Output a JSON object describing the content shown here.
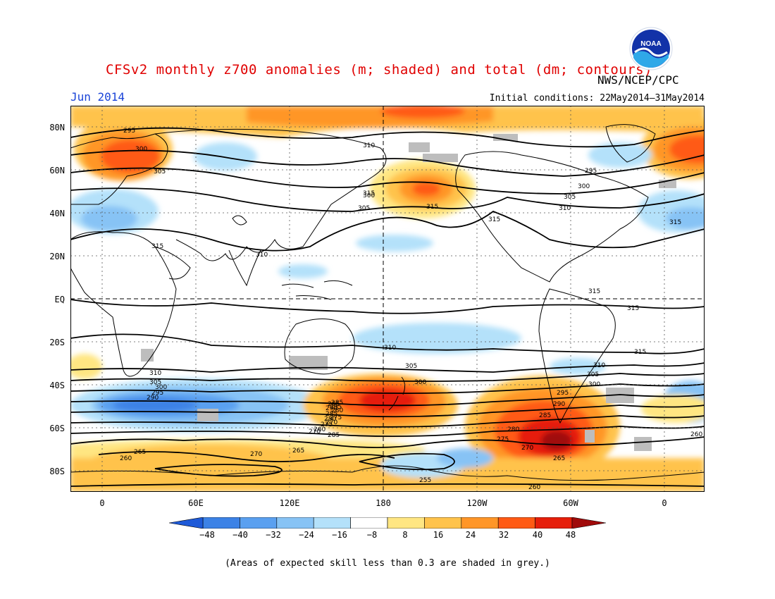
{
  "header": {
    "title": "CFSv2 monthly z700 anomalies (m; shaded) and total (dm; contours)",
    "agency": "NWS/NCEP/CPC",
    "month": "Jun 2014",
    "initial_conditions": "Initial conditions: 22May2014–31May2014",
    "logo_text": "NOAA"
  },
  "axes": {
    "y_labels": [
      "80N",
      "60N",
      "40N",
      "20N",
      "EQ",
      "20S",
      "40S",
      "60S",
      "80S"
    ],
    "x_labels": [
      "0",
      "60E",
      "120E",
      "180",
      "120W",
      "60W",
      "0"
    ]
  },
  "colorbar": {
    "ticks": [
      "−48",
      "−40",
      "−32",
      "−24",
      "−16",
      "−8",
      "8",
      "16",
      "24",
      "32",
      "40",
      "48"
    ],
    "colors": [
      "#1e5ad8",
      "#3c82e6",
      "#5aa0f0",
      "#87c3f5",
      "#b4e1fa",
      "#ffffff",
      "#ffe682",
      "#ffc34b",
      "#ff9628",
      "#ff5a14",
      "#e61e0a",
      "#a00a0a"
    ]
  },
  "contour_labels": [
    "295",
    "300",
    "305",
    "310",
    "315",
    "295",
    "300",
    "305",
    "315",
    "310",
    "315",
    "315",
    "310",
    "305",
    "300",
    "315",
    "310",
    "305",
    "300",
    "295",
    "290",
    "285",
    "280",
    "275",
    "270",
    "260",
    "265",
    "270",
    "265",
    "260",
    "255",
    "260",
    "280",
    "275",
    "270",
    "265",
    "285",
    "290",
    "295",
    "300",
    "305",
    "310",
    "315",
    "260",
    "300",
    "295",
    "315",
    "285",
    "305",
    "310",
    "315",
    "295",
    "290",
    "285",
    "280",
    "275",
    "270"
  ],
  "footnote": "(Areas of expected skill less than 0.3 are shaded in grey.)"
}
